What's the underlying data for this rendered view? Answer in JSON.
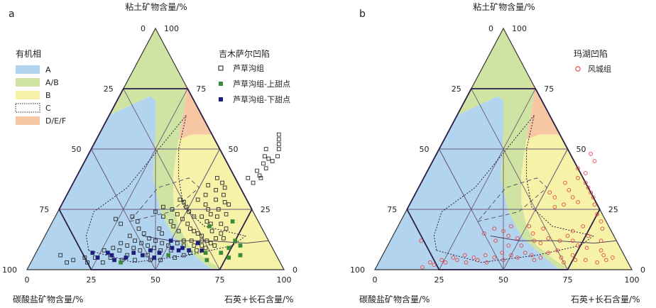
{
  "colors": {
    "A": "#b3d4ee",
    "A/B": "#cfe4a2",
    "B": "#f6f3a8",
    "D/E/F": "#f7c6a2",
    "grid": "#6b5a7a",
    "hex": "#2b1d46",
    "series_open": "#2b2b2b",
    "series_green": "#3a8a3a",
    "series_navy": "#1e1e7a",
    "series_red": "#e04848"
  },
  "chart_data": [
    {
      "type": "scatter",
      "panel_label": "a",
      "top_axis_label": "粘土矿物含量/%",
      "left_axis_label": "碳酸盐矿物含量/%",
      "right_axis_label": "石英+长石含量/%",
      "base_ticks": [
        "0",
        "25",
        "50",
        "75",
        "100"
      ],
      "left_ticks": [
        "100",
        "75",
        "50",
        "25",
        "0"
      ],
      "right_ticks": [
        "0",
        "25",
        "50",
        "75",
        "100"
      ],
      "facies_legend_title": "有机相",
      "facies_legend": [
        "A",
        "A/B",
        "B",
        "C",
        "D/E/F"
      ],
      "series_legend_title": "吉木萨尔凹陷",
      "series": [
        {
          "name": "芦草沟组",
          "marker": "open-square",
          "points": [
            [
              70,
              56
            ],
            [
              71,
              54
            ],
            [
              72,
              52
            ],
            [
              68,
              50
            ],
            [
              73,
              50
            ],
            [
              69,
              47
            ],
            [
              71,
              46
            ],
            [
              73,
              45
            ],
            [
              70,
              44
            ],
            [
              72,
              42
            ],
            [
              74,
              47
            ],
            [
              69,
              41
            ],
            [
              71,
              39
            ],
            [
              67,
              38
            ],
            [
              72,
              38
            ],
            [
              70,
              36
            ],
            [
              55,
              38
            ],
            [
              58,
              36
            ],
            [
              53,
              35
            ],
            [
              60,
              34
            ],
            [
              57,
              33
            ],
            [
              54,
              31
            ],
            [
              61,
              31
            ],
            [
              59,
              29
            ],
            [
              52,
              29
            ],
            [
              63,
              28
            ],
            [
              56,
              27
            ],
            [
              65,
              27
            ],
            [
              58,
              25
            ],
            [
              62,
              25
            ],
            [
              60,
              23
            ],
            [
              66,
              23
            ],
            [
              40,
              26
            ],
            [
              44,
              25
            ],
            [
              38,
              24
            ],
            [
              47,
              23
            ],
            [
              42,
              22
            ],
            [
              50,
              21
            ],
            [
              46,
              20
            ],
            [
              53,
              19
            ],
            [
              48,
              18
            ],
            [
              55,
              17
            ],
            [
              43,
              17
            ],
            [
              57,
              16
            ],
            [
              51,
              16
            ],
            [
              45,
              15
            ],
            [
              59,
              15
            ],
            [
              61,
              14
            ],
            [
              35,
              17
            ],
            [
              38,
              15
            ],
            [
              33,
              14
            ],
            [
              41,
              13
            ],
            [
              36,
              12
            ],
            [
              44,
              12
            ],
            [
              31,
              11
            ],
            [
              39,
              11
            ],
            [
              47,
              11
            ],
            [
              34,
              10
            ],
            [
              42,
              10
            ],
            [
              50,
              10
            ],
            [
              53,
              11
            ],
            [
              29,
              9
            ],
            [
              37,
              9
            ],
            [
              45,
              9
            ],
            [
              55,
              12
            ],
            [
              58,
              12
            ],
            [
              62,
              12
            ],
            [
              64,
              12
            ],
            [
              56,
              10
            ],
            [
              60,
              10
            ],
            [
              63,
              10
            ],
            [
              66,
              11
            ],
            [
              68,
              10
            ],
            [
              48,
              8
            ],
            [
              52,
              8
            ],
            [
              40,
              8
            ],
            [
              32,
              8
            ],
            [
              26,
              8
            ],
            [
              44,
              6
            ],
            [
              36,
              6
            ],
            [
              20,
              5
            ],
            [
              24,
              5
            ],
            [
              30,
              5
            ],
            [
              16,
              4
            ],
            [
              22,
              3
            ],
            [
              28,
              3
            ],
            [
              35,
              4
            ],
            [
              40,
              4
            ],
            [
              46,
              4
            ],
            [
              50,
              4
            ],
            [
              10,
              6
            ],
            [
              14,
              3
            ],
            [
              55,
              5
            ],
            [
              58,
              6
            ],
            [
              60,
              7
            ],
            [
              62,
              8
            ],
            [
              65,
              9
            ],
            [
              67,
              13
            ],
            [
              64,
              16
            ],
            [
              66,
              19
            ],
            [
              62,
              19
            ],
            [
              60,
              20
            ],
            [
              57,
              22
            ],
            [
              54,
              22
            ],
            [
              51,
              24
            ],
            [
              49,
              26
            ],
            [
              47,
              28
            ],
            [
              45,
              29
            ],
            [
              63,
              22
            ],
            [
              68,
              15
            ],
            [
              70,
              13
            ],
            [
              69,
              17
            ],
            [
              24,
              21
            ],
            [
              30,
              22
            ],
            [
              27,
              19
            ],
            [
              33,
              20
            ]
          ]
        },
        {
          "name": "芦草沟组-上甜点",
          "marker": "filled-square",
          "points": [
            [
              72,
              7
            ],
            [
              74,
              9
            ],
            [
              76,
              5
            ],
            [
              78,
              10
            ],
            [
              66,
              7
            ],
            [
              68,
              4
            ],
            [
              75,
              12
            ],
            [
              80,
              6
            ],
            [
              62,
              18
            ],
            [
              70,
              20
            ],
            [
              35,
              3
            ],
            [
              52,
              6
            ]
          ]
        },
        {
          "name": "芦草沟组-下甜点",
          "marker": "filled-square",
          "points": [
            [
              25,
              5
            ],
            [
              22,
              7
            ],
            [
              28,
              7
            ],
            [
              32,
              4
            ],
            [
              38,
              7
            ],
            [
              42,
              6
            ],
            [
              48,
              7
            ],
            [
              52,
              9
            ],
            [
              56,
              9
            ],
            [
              59,
              8
            ],
            [
              61,
              11
            ],
            [
              64,
              8
            ],
            [
              44,
              8
            ],
            [
              30,
              6
            ],
            [
              47,
              5
            ],
            [
              55,
              8
            ],
            [
              50,
              12
            ],
            [
              36,
              5
            ]
          ]
        }
      ]
    },
    {
      "type": "scatter",
      "panel_label": "b",
      "top_axis_label": "粘土矿物含量/%",
      "left_axis_label": "碳酸盐矿物含量/%",
      "right_axis_label": "石英+长石含量/%",
      "base_ticks": [
        "0",
        "25",
        "50",
        "75",
        "100"
      ],
      "left_ticks": [
        "100",
        "75",
        "50",
        "25",
        "0"
      ],
      "right_ticks": [
        "0",
        "25",
        "50",
        "75",
        "100"
      ],
      "series_legend_title": "玛湖凹陷",
      "series": [
        {
          "name": "风城组",
          "marker": "open-circle",
          "points": [
            [
              60,
              48
            ],
            [
              63,
              45
            ],
            [
              58,
              42
            ],
            [
              62,
              40
            ],
            [
              60,
              38
            ],
            [
              64,
              36
            ],
            [
              56,
              36
            ],
            [
              66,
              34
            ],
            [
              59,
              33
            ],
            [
              68,
              32
            ],
            [
              62,
              30
            ],
            [
              70,
              30
            ],
            [
              65,
              28
            ],
            [
              72,
              27
            ],
            [
              60,
              27
            ],
            [
              57,
              26
            ],
            [
              75,
              23
            ],
            [
              78,
              20
            ],
            [
              80,
              17
            ],
            [
              72,
              18
            ],
            [
              69,
              16
            ],
            [
              76,
              14
            ],
            [
              82,
              12
            ],
            [
              71,
              12
            ],
            [
              74,
              10
            ],
            [
              78,
              9
            ],
            [
              84,
              8
            ],
            [
              86,
              6
            ],
            [
              88,
              4
            ],
            [
              90,
              5
            ],
            [
              85,
              3
            ],
            [
              80,
              4
            ],
            [
              67,
              8
            ],
            [
              64,
              7
            ],
            [
              62,
              5
            ],
            [
              60,
              4
            ],
            [
              58,
              6
            ],
            [
              55,
              7
            ],
            [
              53,
              5
            ],
            [
              50,
              6
            ],
            [
              48,
              4
            ],
            [
              46,
              7
            ],
            [
              44,
              5
            ],
            [
              42,
              3
            ],
            [
              40,
              6
            ],
            [
              38,
              4
            ],
            [
              36,
              5
            ],
            [
              34,
              3
            ],
            [
              30,
              4
            ],
            [
              32,
              6
            ],
            [
              28,
              5
            ],
            [
              26,
              3
            ],
            [
              24,
              4
            ],
            [
              22,
              2
            ],
            [
              20,
              3
            ],
            [
              18,
              1
            ],
            [
              41,
              12
            ],
            [
              45,
              14
            ],
            [
              49,
              13
            ],
            [
              44,
              18
            ],
            [
              38,
              17
            ],
            [
              42,
              16
            ],
            [
              51,
              18
            ],
            [
              35,
              15
            ],
            [
              47,
              10
            ],
            [
              52,
              10
            ],
            [
              56,
              12
            ],
            [
              59,
              11
            ],
            [
              61,
              13
            ],
            [
              66,
              12
            ],
            [
              68,
              14
            ],
            [
              54,
              15
            ],
            [
              57,
              17
            ],
            [
              74,
              6
            ],
            [
              76,
              4
            ],
            [
              70,
              5
            ],
            [
              72,
              3
            ],
            [
              52,
              32
            ],
            [
              55,
              30
            ],
            [
              12,
              12
            ]
          ]
        }
      ]
    }
  ]
}
